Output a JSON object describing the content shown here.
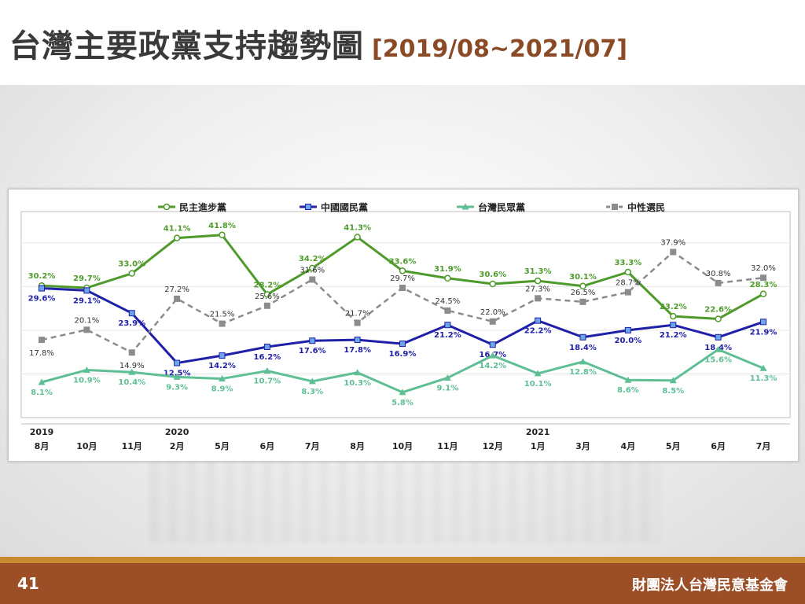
{
  "header": {
    "title": "台灣主要政黨支持趨勢圖",
    "range": "[2019/08~2021/07]"
  },
  "footer": {
    "page_number": "41",
    "organization": "財團法人台灣民意基金會"
  },
  "chart_data": {
    "type": "line",
    "legend_position": "top",
    "grid": true,
    "ylim": [
      0,
      45
    ],
    "categories": [
      "8月",
      "10月",
      "11月",
      "2月",
      "5月",
      "6月",
      "7月",
      "8月",
      "10月",
      "11月",
      "12月",
      "1月",
      "3月",
      "4月",
      "5月",
      "6月",
      "7月"
    ],
    "year_labels": [
      {
        "index": 0,
        "label": "2019"
      },
      {
        "index": 3,
        "label": "2020"
      },
      {
        "index": 11,
        "label": "2021"
      }
    ],
    "series": [
      {
        "name": "民主進步黨",
        "color": "#4e9a2a",
        "marker": "circle",
        "dashed": false,
        "values": [
          30.2,
          29.7,
          33.0,
          41.1,
          41.8,
          28.2,
          34.2,
          41.3,
          33.6,
          31.9,
          30.6,
          31.3,
          30.1,
          33.3,
          23.2,
          22.6,
          28.3
        ]
      },
      {
        "name": "中國國民黨",
        "color": "#1f1fa8",
        "marker": "square",
        "dashed": false,
        "values": [
          29.6,
          29.1,
          23.9,
          12.5,
          14.2,
          16.2,
          17.6,
          17.8,
          16.9,
          21.2,
          16.7,
          22.2,
          18.4,
          20.0,
          21.2,
          18.4,
          21.9
        ]
      },
      {
        "name": "台灣民眾黨",
        "color": "#5fbf94",
        "marker": "triangle",
        "dashed": false,
        "values": [
          8.1,
          10.9,
          10.4,
          9.3,
          8.9,
          10.7,
          8.3,
          10.3,
          5.8,
          9.1,
          14.2,
          10.1,
          12.8,
          8.6,
          8.5,
          15.6,
          11.3
        ]
      },
      {
        "name": "中性選民",
        "color": "#8c8c8c",
        "marker": "square",
        "dashed": true,
        "values": [
          17.8,
          20.1,
          14.9,
          27.2,
          21.5,
          25.6,
          31.6,
          21.7,
          29.7,
          24.5,
          22.0,
          27.3,
          26.5,
          28.7,
          37.9,
          30.8,
          32.0
        ]
      }
    ]
  }
}
